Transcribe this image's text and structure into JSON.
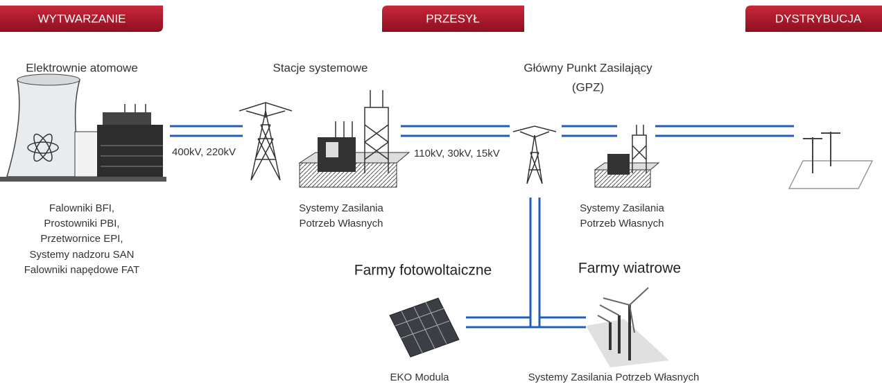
{
  "headers": [
    "WYTWARZANIE",
    "PRZESYŁ",
    "DYSTRYBUCJA"
  ],
  "nodes": [
    {
      "label": [
        "Elektrownie atomowe"
      ]
    },
    {
      "label": [
        "Stacje systemowe"
      ]
    },
    {
      "label": [
        "Główny Punkt Zasilający",
        "(GPZ)"
      ]
    },
    {
      "label": [
        "Farmy fotowoltaiczne"
      ]
    },
    {
      "label": [
        "Farmy wiatrowe"
      ]
    }
  ],
  "lines": [
    "400kV, 220kV",
    "110kV, 30kV, 15kV"
  ],
  "captions": [
    [
      "Falowniki BFI,",
      "Prostowniki PBI,",
      "Przetwornice EPI,",
      "Systemy nadzoru SAN",
      "Falowniki napędowe FAT"
    ],
    [
      "Systemy Zasilania",
      "Potrzeb Własnych"
    ],
    [
      "Systemy Zasilania",
      "Potrzeb Własnych"
    ],
    [
      "EKO Modula"
    ],
    [
      "Systemy Zasilania Potrzeb Własnych"
    ]
  ]
}
